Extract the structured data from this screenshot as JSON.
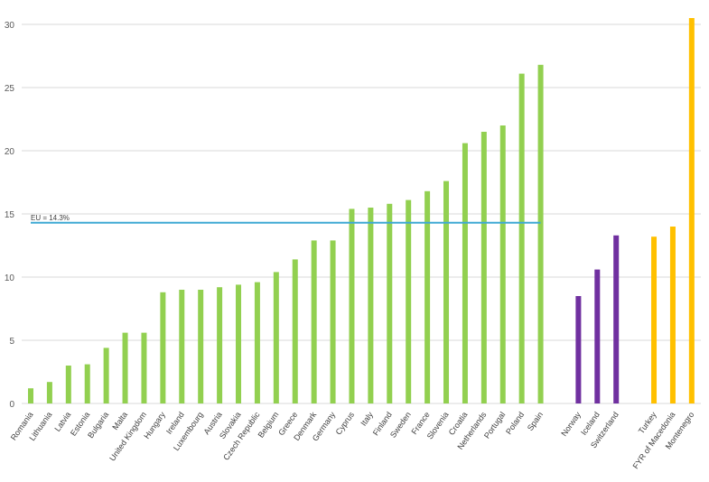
{
  "chart_data": {
    "type": "bar",
    "title": "",
    "xlabel": "",
    "ylabel": "",
    "ylim": [
      0,
      30
    ],
    "yticks": [
      0,
      5,
      10,
      15,
      20,
      25,
      30
    ],
    "grid": true,
    "legend": "none",
    "groups": [
      {
        "color": "#92d050",
        "categories": [
          "Romania",
          "Lithuania",
          "Latvia",
          "Estonia",
          "Bulgaria",
          "Malta",
          "United Kingdom",
          "Hungary",
          "Ireland",
          "Luxembourg",
          "Austria",
          "Slovakia",
          "Czech Republic",
          "Belgium",
          "Greece",
          "Denmark",
          "Germany",
          "Cyprus",
          "Italy",
          "Finland",
          "Sweden",
          "France",
          "Slovenia",
          "Croatia",
          "Netherlands",
          "Portugal",
          "Poland",
          "Spain"
        ],
        "values": [
          1.2,
          1.7,
          3.0,
          3.1,
          4.4,
          5.6,
          5.6,
          8.8,
          9.0,
          9.0,
          9.2,
          9.4,
          9.6,
          10.4,
          11.4,
          12.9,
          12.9,
          15.4,
          15.5,
          15.8,
          16.1,
          16.8,
          17.6,
          20.6,
          21.5,
          22.0,
          26.1,
          26.8
        ]
      },
      {
        "color": "#7030a0",
        "categories": [
          "Norway",
          "Iceland",
          "Switzerland"
        ],
        "values": [
          8.5,
          10.6,
          13.3
        ]
      },
      {
        "color": "#ffc000",
        "categories": [
          "Turkey",
          "FYR of Macedonia",
          "Montenegro"
        ],
        "values": [
          13.2,
          14.0,
          30.5
        ]
      }
    ],
    "reference_line": {
      "label": "EU = 14.3%",
      "value": 14.3,
      "color": "#3fa9d4"
    }
  }
}
